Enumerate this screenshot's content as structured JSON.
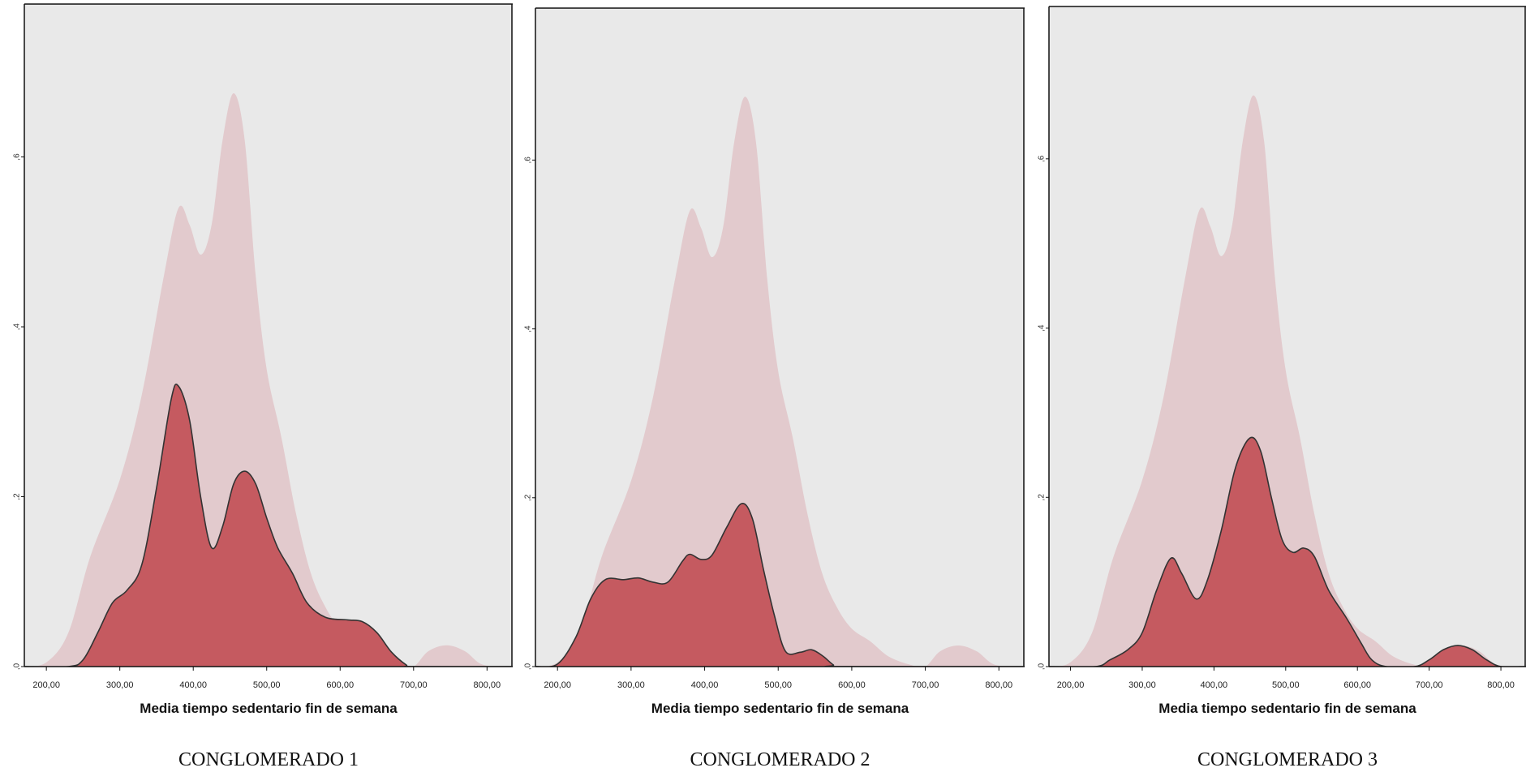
{
  "colors": {
    "plot_background": "#e9e9e9",
    "overall_density": "#e2cacd",
    "cluster_density": "#c55a60",
    "cluster_outline": "#333333"
  },
  "chart_data": [
    {
      "type": "area",
      "caption": "CONGLOMERADO 1",
      "xlabel": "Media tiempo sedentario fin de semana",
      "ylabel": "",
      "xlim": [
        170,
        835
      ],
      "ylim": [
        0,
        0.78
      ],
      "x_ticks": [
        200,
        300,
        400,
        500,
        600,
        700,
        800
      ],
      "x_tick_labels": [
        "200,00",
        "300,00",
        "400,00",
        "500,00",
        "600,00",
        "700,00",
        "800,00"
      ],
      "y_ticks": [
        0,
        0.2,
        0.4,
        0.6
      ],
      "y_tick_labels": [
        ",0",
        ",2",
        ",4",
        ",6"
      ],
      "series": [
        {
          "role": "overall",
          "points": [
            [
              170,
              0
            ],
            [
              200,
              0.005
            ],
            [
              230,
              0.04
            ],
            [
              260,
              0.13
            ],
            [
              300,
              0.22
            ],
            [
              330,
              0.32
            ],
            [
              360,
              0.46
            ],
            [
              380,
              0.54
            ],
            [
              395,
              0.52
            ],
            [
              410,
              0.485
            ],
            [
              425,
              0.52
            ],
            [
              440,
              0.62
            ],
            [
              455,
              0.675
            ],
            [
              470,
              0.62
            ],
            [
              485,
              0.46
            ],
            [
              500,
              0.35
            ],
            [
              520,
              0.27
            ],
            [
              540,
              0.18
            ],
            [
              560,
              0.11
            ],
            [
              580,
              0.07
            ],
            [
              600,
              0.045
            ],
            [
              625,
              0.03
            ],
            [
              650,
              0.012
            ],
            [
              680,
              0.002
            ],
            [
              700,
              0.0
            ],
            [
              720,
              0.018
            ],
            [
              745,
              0.025
            ],
            [
              770,
              0.018
            ],
            [
              795,
              0.002
            ],
            [
              835,
              0
            ]
          ]
        },
        {
          "role": "cluster",
          "points": [
            [
              170,
              0
            ],
            [
              230,
              0
            ],
            [
              250,
              0.008
            ],
            [
              270,
              0.04
            ],
            [
              290,
              0.075
            ],
            [
              310,
              0.09
            ],
            [
              330,
              0.12
            ],
            [
              350,
              0.21
            ],
            [
              370,
              0.315
            ],
            [
              380,
              0.33
            ],
            [
              395,
              0.29
            ],
            [
              410,
              0.2
            ],
            [
              425,
              0.14
            ],
            [
              440,
              0.165
            ],
            [
              455,
              0.215
            ],
            [
              470,
              0.23
            ],
            [
              485,
              0.215
            ],
            [
              500,
              0.175
            ],
            [
              515,
              0.14
            ],
            [
              535,
              0.11
            ],
            [
              555,
              0.075
            ],
            [
              580,
              0.058
            ],
            [
              610,
              0.055
            ],
            [
              630,
              0.053
            ],
            [
              650,
              0.04
            ],
            [
              670,
              0.017
            ],
            [
              690,
              0.002
            ],
            [
              700,
              0
            ],
            [
              835,
              0
            ]
          ]
        }
      ]
    },
    {
      "type": "area",
      "caption": "CONGLOMERADO 2",
      "xlabel": "Media tiempo sedentario fin de semana",
      "ylabel": "",
      "xlim": [
        170,
        835
      ],
      "ylim": [
        0,
        0.78
      ],
      "x_ticks": [
        200,
        300,
        400,
        500,
        600,
        700,
        800
      ],
      "x_tick_labels": [
        "200,00",
        "300,00",
        "400,00",
        "500,00",
        "600,00",
        "700,00",
        "800,00"
      ],
      "y_ticks": [
        0,
        0.2,
        0.4,
        0.6
      ],
      "y_tick_labels": [
        ",0",
        ",2",
        ",4",
        ",6"
      ],
      "series": [
        {
          "role": "overall",
          "points": [
            [
              170,
              0
            ],
            [
              200,
              0.005
            ],
            [
              230,
              0.04
            ],
            [
              260,
              0.13
            ],
            [
              300,
              0.22
            ],
            [
              330,
              0.32
            ],
            [
              360,
              0.46
            ],
            [
              380,
              0.54
            ],
            [
              395,
              0.52
            ],
            [
              410,
              0.485
            ],
            [
              425,
              0.52
            ],
            [
              440,
              0.62
            ],
            [
              455,
              0.675
            ],
            [
              470,
              0.62
            ],
            [
              485,
              0.46
            ],
            [
              500,
              0.35
            ],
            [
              520,
              0.27
            ],
            [
              540,
              0.18
            ],
            [
              560,
              0.11
            ],
            [
              580,
              0.07
            ],
            [
              600,
              0.045
            ],
            [
              625,
              0.03
            ],
            [
              650,
              0.012
            ],
            [
              680,
              0.002
            ],
            [
              700,
              0.0
            ],
            [
              720,
              0.018
            ],
            [
              745,
              0.025
            ],
            [
              770,
              0.018
            ],
            [
              795,
              0.002
            ],
            [
              835,
              0
            ]
          ]
        },
        {
          "role": "cluster",
          "points": [
            [
              170,
              0
            ],
            [
              200,
              0.003
            ],
            [
              225,
              0.035
            ],
            [
              245,
              0.08
            ],
            [
              265,
              0.103
            ],
            [
              290,
              0.103
            ],
            [
              310,
              0.105
            ],
            [
              330,
              0.1
            ],
            [
              350,
              0.1
            ],
            [
              370,
              0.125
            ],
            [
              380,
              0.133
            ],
            [
              395,
              0.127
            ],
            [
              410,
              0.132
            ],
            [
              430,
              0.165
            ],
            [
              450,
              0.193
            ],
            [
              465,
              0.175
            ],
            [
              480,
              0.115
            ],
            [
              495,
              0.06
            ],
            [
              510,
              0.018
            ],
            [
              530,
              0.017
            ],
            [
              545,
              0.02
            ],
            [
              560,
              0.013
            ],
            [
              575,
              0.002
            ],
            [
              585,
              0
            ],
            [
              835,
              0
            ]
          ]
        }
      ]
    },
    {
      "type": "area",
      "caption": "CONGLOMERADO 3",
      "xlabel": "Media tiempo sedentario fin de semana",
      "ylabel": "",
      "xlim": [
        170,
        835
      ],
      "ylim": [
        0,
        0.78
      ],
      "x_ticks": [
        200,
        300,
        400,
        500,
        600,
        700,
        800
      ],
      "x_tick_labels": [
        "200,00",
        "300,00",
        "400,00",
        "500,00",
        "600,00",
        "700,00",
        "800,00"
      ],
      "y_ticks": [
        0,
        0.2,
        0.4,
        0.6
      ],
      "y_tick_labels": [
        ",0",
        ",2",
        ",4",
        ",6"
      ],
      "series": [
        {
          "role": "overall",
          "points": [
            [
              170,
              0
            ],
            [
              200,
              0.005
            ],
            [
              230,
              0.04
            ],
            [
              260,
              0.13
            ],
            [
              300,
              0.22
            ],
            [
              330,
              0.32
            ],
            [
              360,
              0.46
            ],
            [
              380,
              0.54
            ],
            [
              395,
              0.52
            ],
            [
              410,
              0.485
            ],
            [
              425,
              0.52
            ],
            [
              440,
              0.62
            ],
            [
              455,
              0.675
            ],
            [
              470,
              0.62
            ],
            [
              485,
              0.46
            ],
            [
              500,
              0.35
            ],
            [
              520,
              0.27
            ],
            [
              540,
              0.18
            ],
            [
              560,
              0.11
            ],
            [
              580,
              0.07
            ],
            [
              600,
              0.045
            ],
            [
              625,
              0.03
            ],
            [
              650,
              0.012
            ],
            [
              680,
              0.002
            ],
            [
              700,
              0.0
            ],
            [
              720,
              0.018
            ],
            [
              745,
              0.025
            ],
            [
              770,
              0.018
            ],
            [
              795,
              0.002
            ],
            [
              835,
              0
            ]
          ]
        },
        {
          "role": "cluster",
          "points": [
            [
              170,
              0
            ],
            [
              235,
              0
            ],
            [
              255,
              0.008
            ],
            [
              280,
              0.02
            ],
            [
              300,
              0.04
            ],
            [
              320,
              0.09
            ],
            [
              340,
              0.128
            ],
            [
              355,
              0.11
            ],
            [
              375,
              0.08
            ],
            [
              390,
              0.1
            ],
            [
              410,
              0.16
            ],
            [
              430,
              0.235
            ],
            [
              450,
              0.27
            ],
            [
              465,
              0.255
            ],
            [
              480,
              0.2
            ],
            [
              495,
              0.15
            ],
            [
              510,
              0.135
            ],
            [
              525,
              0.14
            ],
            [
              540,
              0.13
            ],
            [
              560,
              0.09
            ],
            [
              585,
              0.057
            ],
            [
              605,
              0.028
            ],
            [
              620,
              0.008
            ],
            [
              640,
              0
            ],
            [
              680,
              0
            ],
            [
              700,
              0.008
            ],
            [
              720,
              0.02
            ],
            [
              740,
              0.025
            ],
            [
              760,
              0.02
            ],
            [
              780,
              0.008
            ],
            [
              800,
              0
            ],
            [
              835,
              0
            ]
          ]
        }
      ]
    }
  ]
}
